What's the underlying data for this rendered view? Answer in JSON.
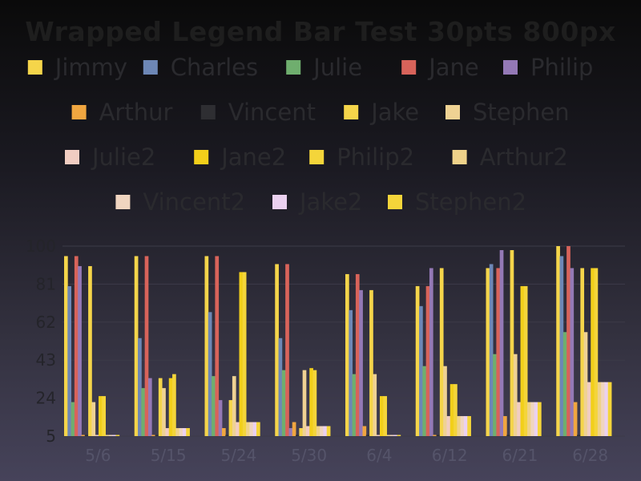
{
  "chart_data": {
    "type": "bar",
    "title": "Wrapped Legend Bar Test 30pts 800px",
    "xlabel": "",
    "ylabel": "",
    "ylim": [
      5,
      100
    ],
    "yticks": [
      5,
      24,
      43,
      62,
      81,
      100
    ],
    "grid": true,
    "legend_position": "top",
    "categories": [
      "5/6",
      "5/15",
      "5/24",
      "5/30",
      "6/4",
      "6/12",
      "6/21",
      "6/28"
    ],
    "series": [
      {
        "name": "Jimmy",
        "color": "#f5d54a",
        "values": [
          95,
          95,
          95,
          91,
          86,
          80,
          89,
          100
        ]
      },
      {
        "name": "Charles",
        "color": "#6d87b6",
        "values": [
          80,
          54,
          67,
          54,
          68,
          70,
          91,
          95
        ]
      },
      {
        "name": "Julie",
        "color": "#6fae6e",
        "values": [
          22,
          29,
          35,
          38,
          36,
          40,
          46,
          57
        ]
      },
      {
        "name": "Jane",
        "color": "#d8635a",
        "values": [
          95,
          95,
          95,
          91,
          86,
          80,
          89,
          100
        ]
      },
      {
        "name": "Philip",
        "color": "#9479b6",
        "values": [
          90,
          34,
          23,
          9,
          78,
          89,
          98,
          89
        ]
      },
      {
        "name": "Arthur",
        "color": "#f0a640",
        "values": [
          5,
          5,
          9,
          12,
          10,
          5,
          15,
          22
        ]
      },
      {
        "name": "Vincent",
        "color": "#2e2e32",
        "values": [
          5,
          5,
          5,
          5,
          5,
          5,
          5,
          5
        ]
      },
      {
        "name": "Jake",
        "color": "#f5d54a",
        "values": [
          90,
          34,
          23,
          9,
          78,
          89,
          98,
          89
        ]
      },
      {
        "name": "Stephen",
        "color": "#efd293",
        "values": [
          22,
          29,
          35,
          38,
          36,
          40,
          46,
          57
        ]
      },
      {
        "name": "Julie2",
        "color": "#f1cdc2",
        "values": [
          5,
          9,
          12,
          10,
          5,
          15,
          22,
          32
        ]
      },
      {
        "name": "Jane2",
        "color": "#f2cf1a",
        "values": [
          25,
          34,
          87,
          39,
          25,
          31,
          80,
          89
        ]
      },
      {
        "name": "Philip2",
        "color": "#f4d53a",
        "values": [
          25,
          36,
          87,
          38,
          25,
          31,
          80,
          89
        ]
      },
      {
        "name": "Arthur2",
        "color": "#efd28a",
        "values": [
          5,
          9,
          12,
          10,
          5,
          15,
          22,
          32
        ]
      },
      {
        "name": "Vincent2",
        "color": "#f0d5c0",
        "values": [
          5,
          9,
          12,
          10,
          5,
          15,
          22,
          32
        ]
      },
      {
        "name": "Jake2",
        "color": "#ebd1f0",
        "values": [
          5,
          9,
          12,
          10,
          5,
          15,
          22,
          32
        ]
      },
      {
        "name": "Stephen2",
        "color": "#f4d53a",
        "values": [
          5,
          9,
          12,
          10,
          5,
          15,
          22,
          32
        ]
      }
    ]
  }
}
